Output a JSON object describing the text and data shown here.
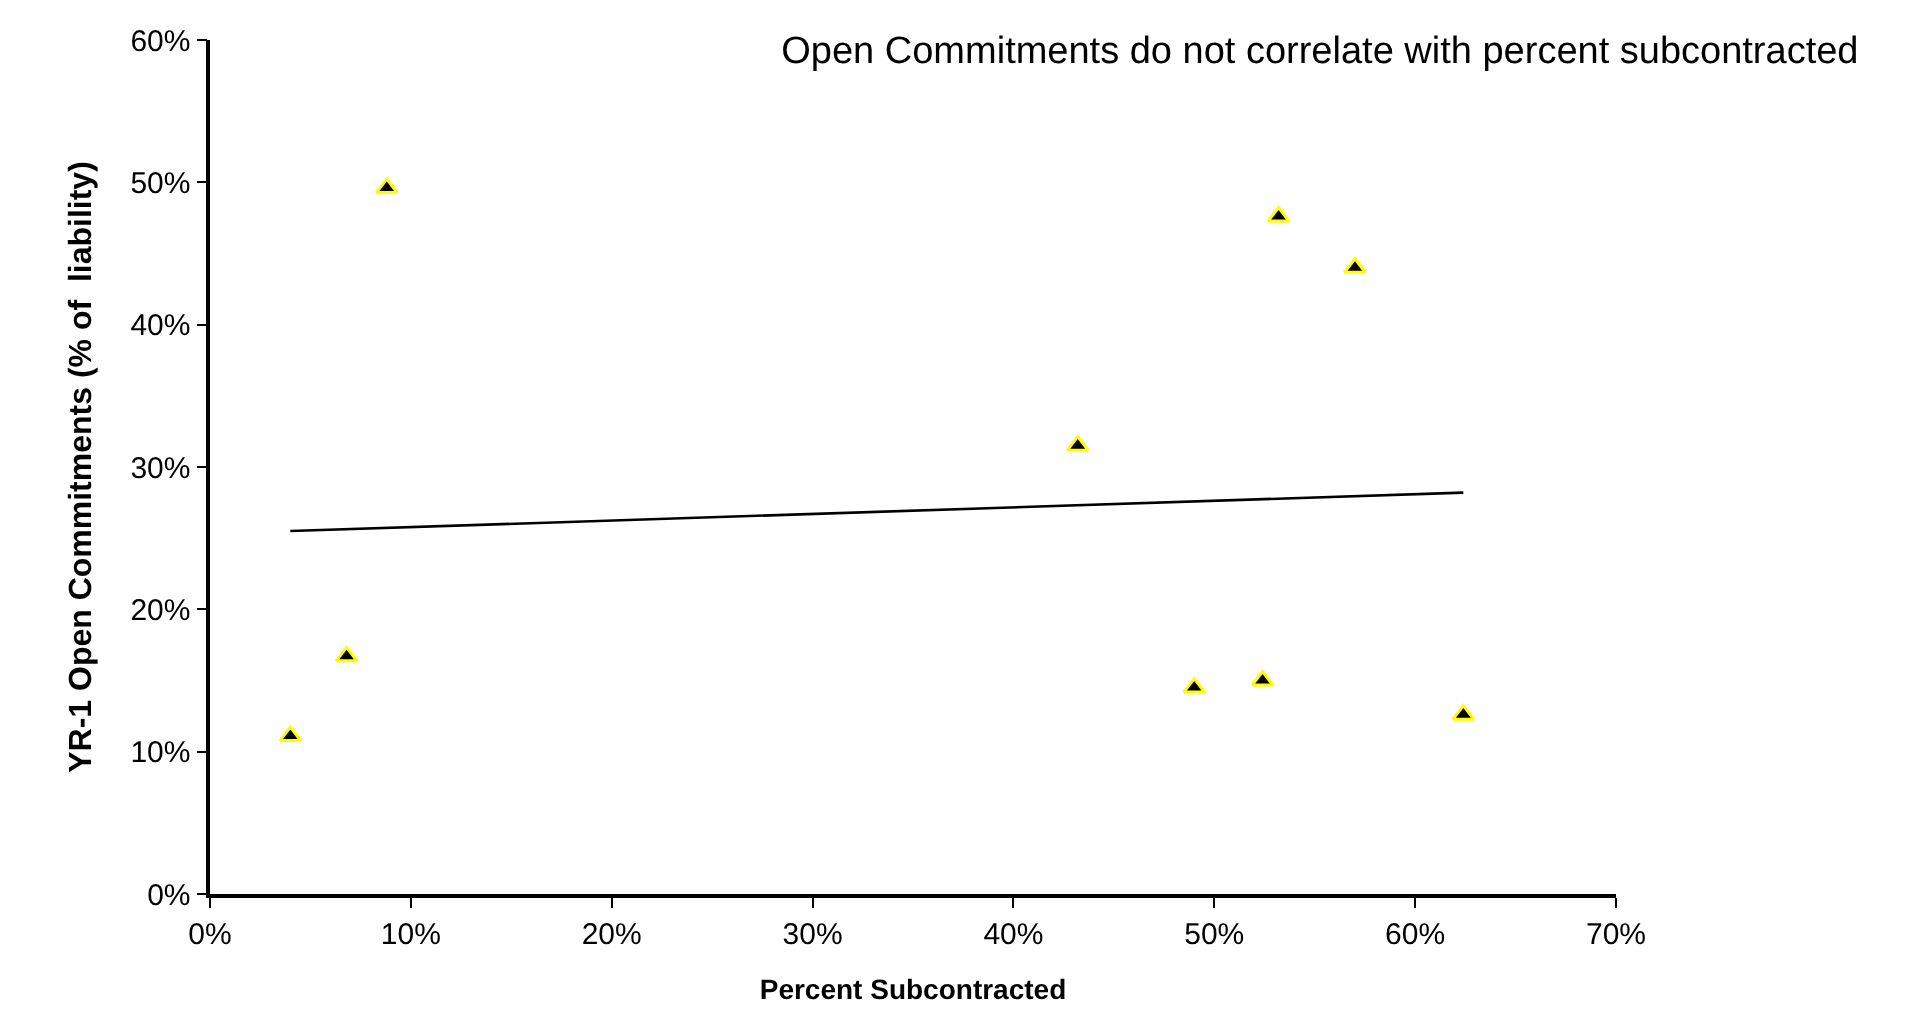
{
  "chart_data": {
    "type": "scatter",
    "title": "Open Commitments do not correlate with percent subcontracted",
    "xlabel": "Percent Subcontracted",
    "ylabel": "YR-1 Open Commitments (% of  liability)",
    "x": [
      4.0,
      6.8,
      8.8,
      43.2,
      49.0,
      52.4,
      53.2,
      57.0,
      62.4
    ],
    "series": [
      {
        "color": "#000000",
        "marker": "triangle",
        "values": [
          11.1,
          16.7,
          49.6,
          31.5,
          14.5,
          15.0,
          47.6,
          44.0,
          12.6
        ]
      },
      {
        "type": "line",
        "color": "#000000",
        "x": [
          4.0,
          62.4
        ],
        "values": [
          25.5,
          28.2
        ]
      }
    ],
    "xlim": [
      0,
      70
    ],
    "xticks": [
      {
        "value": 0,
        "label": "0%"
      },
      {
        "value": 10,
        "label": "10%"
      },
      {
        "value": 20,
        "label": "20%"
      },
      {
        "value": 30,
        "label": "30%"
      },
      {
        "value": 40,
        "label": "40%"
      },
      {
        "value": 50,
        "label": "50%"
      },
      {
        "value": 60,
        "label": "60%"
      },
      {
        "value": 70,
        "label": "70%"
      }
    ],
    "ylim": [
      0,
      60
    ],
    "yticks": [
      {
        "value": 0,
        "label": "0%"
      },
      {
        "value": 10,
        "label": "10%"
      },
      {
        "value": 20,
        "label": "20%"
      },
      {
        "value": 30,
        "label": "30%"
      },
      {
        "value": 40,
        "label": "40%"
      },
      {
        "value": 50,
        "label": "50%"
      },
      {
        "value": 60,
        "label": "60%"
      }
    ]
  }
}
